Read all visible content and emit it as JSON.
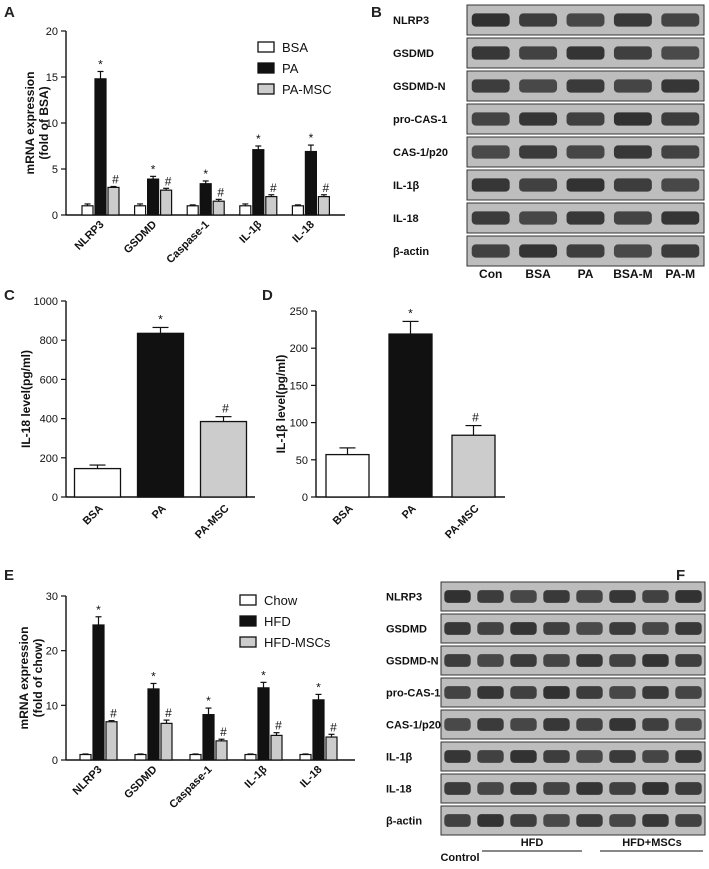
{
  "panels": {
    "a": "A",
    "b": "B",
    "c": "C",
    "d": "D",
    "e": "E",
    "f": "F"
  },
  "colors": {
    "white": "#ffffff",
    "black": "#111111",
    "gray": "#cccccc"
  },
  "chart_data": [
    {
      "id": "A",
      "type": "bar",
      "ylabel_lines": [
        "mRNA expression",
        "(fold of BSA)"
      ],
      "ylim": [
        0,
        20
      ],
      "yticks": [
        0,
        5,
        10,
        15,
        20
      ],
      "categories": [
        "NLRP3",
        "GSDMD",
        "Caspase-1",
        "IL-1β",
        "IL-18"
      ],
      "series": [
        {
          "name": "BSA",
          "color": "white",
          "values": [
            1.0,
            1.0,
            1.0,
            1.0,
            1.0
          ],
          "errors": [
            0.2,
            0.2,
            0.1,
            0.2,
            0.1
          ]
        },
        {
          "name": "PA",
          "color": "black",
          "values": [
            14.8,
            3.9,
            3.4,
            7.1,
            6.9
          ],
          "errors": [
            0.8,
            0.3,
            0.3,
            0.4,
            0.7
          ]
        },
        {
          "name": "PA-MSC",
          "color": "gray",
          "values": [
            3.0,
            2.7,
            1.5,
            2.0,
            2.0
          ],
          "errors": [
            0.1,
            0.2,
            0.2,
            0.2,
            0.2
          ]
        }
      ],
      "sig": [
        [
          "",
          "*",
          "#"
        ],
        [
          "",
          "*",
          "#"
        ],
        [
          "",
          "*",
          "#"
        ],
        [
          "",
          "*",
          "#"
        ],
        [
          "",
          "*",
          "#"
        ]
      ],
      "legend": "top-right"
    },
    {
      "id": "C",
      "type": "bar",
      "ylabel": "IL-18 level(pg/ml)",
      "ylim": [
        0,
        1000
      ],
      "yticks": [
        0,
        200,
        400,
        600,
        800,
        1000
      ],
      "categories": [
        "BSA",
        "PA",
        "PA-MSC"
      ],
      "values": [
        145,
        835,
        385
      ],
      "errors": [
        18,
        30,
        25
      ],
      "colors": [
        "white",
        "black",
        "gray"
      ],
      "sig": [
        "",
        "*",
        "#"
      ]
    },
    {
      "id": "D",
      "type": "bar",
      "ylabel": "IL-1β level(pg/ml)",
      "ylim": [
        0,
        250
      ],
      "yticks": [
        0,
        50,
        100,
        150,
        200,
        250
      ],
      "categories": [
        "BSA",
        "PA",
        "PA-MSC"
      ],
      "values": [
        57,
        219,
        83
      ],
      "errors": [
        9,
        17,
        13
      ],
      "colors": [
        "white",
        "black",
        "gray"
      ],
      "sig": [
        "",
        "*",
        "#"
      ]
    },
    {
      "id": "E",
      "type": "bar",
      "ylabel_lines": [
        "mRNA expression",
        "(fold of chow)"
      ],
      "ylim": [
        0,
        30
      ],
      "yticks": [
        0,
        10,
        20,
        30
      ],
      "categories": [
        "NLRP3",
        "GSDMD",
        "Caspase-1",
        "IL-1β",
        "IL-18"
      ],
      "series": [
        {
          "name": "Chow",
          "color": "white",
          "values": [
            1.0,
            1.0,
            1.0,
            1.0,
            1.0
          ],
          "errors": [
            0.1,
            0.1,
            0.1,
            0.1,
            0.1
          ]
        },
        {
          "name": "HFD",
          "color": "black",
          "values": [
            24.7,
            13.0,
            8.3,
            13.2,
            11.0
          ],
          "errors": [
            1.5,
            1.0,
            1.2,
            1.0,
            1.0
          ]
        },
        {
          "name": "HFD-MSCs",
          "color": "gray",
          "values": [
            7.0,
            6.7,
            3.5,
            4.5,
            4.2
          ],
          "errors": [
            0.2,
            0.6,
            0.3,
            0.5,
            0.5
          ]
        }
      ],
      "sig": [
        [
          "",
          "*",
          "#"
        ],
        [
          "",
          "*",
          "#"
        ],
        [
          "",
          "*",
          "#"
        ],
        [
          "",
          "*",
          "#"
        ],
        [
          "",
          "*",
          "#"
        ]
      ],
      "legend": "top-right"
    }
  ],
  "blots": {
    "B": {
      "rows": [
        "NLRP3",
        "GSDMD",
        "GSDMD-N",
        "pro-CAS-1",
        "CAS-1/p20",
        "IL-1β",
        "IL-18",
        "β-actin"
      ],
      "lanes": [
        "Con",
        "BSA",
        "PA",
        "BSA-M",
        "PA-M"
      ]
    },
    "F": {
      "rows": [
        "NLRP3",
        "GSDMD",
        "GSDMD-N",
        "pro-CAS-1",
        "CAS-1/p20",
        "IL-1β",
        "IL-18",
        "β-actin"
      ],
      "groups": [
        "Control",
        "HFD",
        "HFD+MSCs"
      ]
    }
  }
}
